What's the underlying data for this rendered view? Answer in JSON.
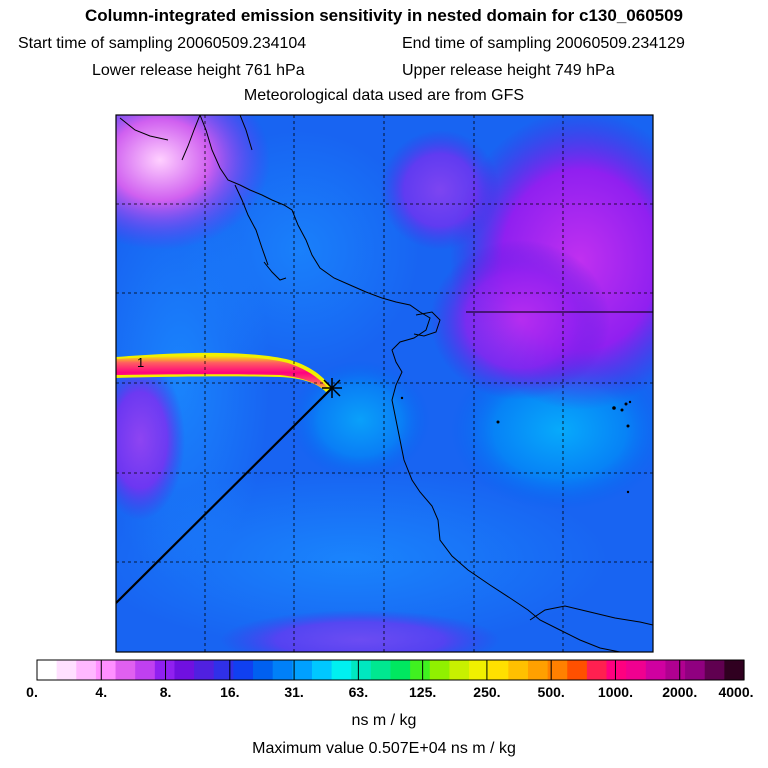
{
  "title": "Column-integrated emission sensitivity in nested domain for c130_060509",
  "sampling": {
    "start": "Start time of sampling 20060509.234104",
    "end": "End time of sampling 20060509.234129"
  },
  "release": {
    "lower": "Lower release height  761 hPa",
    "upper": "Upper release height  749 hPa"
  },
  "met_source": "Meteorological data used are from GFS",
  "map": {
    "point_marker_label": "1",
    "grid": true
  },
  "colorbar": {
    "tick_labels": [
      "0.",
      "4.",
      "8.",
      "16.",
      "31.",
      "63.",
      "125.",
      "250.",
      "500.",
      "1000.",
      "2000.",
      "4000."
    ],
    "units": "ns m / kg",
    "colors": [
      "#ffffff",
      "#ffe0ff",
      "#ffb8ff",
      "#ff90ff",
      "#e060f0",
      "#c040f0",
      "#9020f0",
      "#7010e0",
      "#5020e0",
      "#3030e8",
      "#1040f0",
      "#0060f0",
      "#0080f8",
      "#00a0ff",
      "#00c8ff",
      "#00f0f0",
      "#00e8c0",
      "#00e890",
      "#00e860",
      "#40f020",
      "#90f000",
      "#c8f000",
      "#f0f000",
      "#ffe000",
      "#ffc000",
      "#ffa000",
      "#ff8000",
      "#ff5000",
      "#ff2050",
      "#ff0080",
      "#f00090",
      "#d000a0",
      "#b00090",
      "#900080",
      "#600050",
      "#300020"
    ]
  },
  "max_value": "Maximum value  0.507E+04 ns m / kg"
}
